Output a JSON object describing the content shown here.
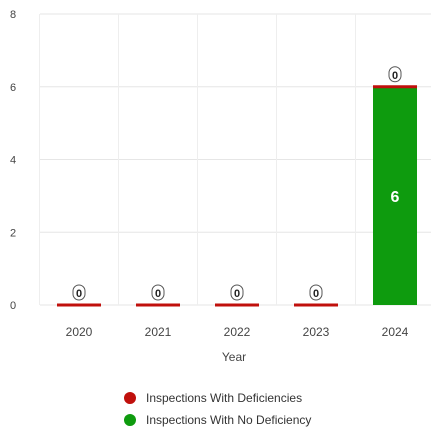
{
  "chart_data": {
    "type": "bar",
    "stacked": true,
    "categories": [
      "2020",
      "2021",
      "2022",
      "2023",
      "2024"
    ],
    "series": [
      {
        "name": "Inspections With Deficiencies",
        "values": [
          0,
          0,
          0,
          0,
          0
        ],
        "color": "#c0100c"
      },
      {
        "name": "Inspections With No Deficiency",
        "values": [
          0,
          0,
          0,
          0,
          6
        ],
        "color": "#0e9b0e"
      }
    ],
    "xlabel": "Year",
    "ylabel": "",
    "ylim": [
      0,
      8
    ],
    "yticks": [
      "0",
      "2",
      "4",
      "6",
      "8"
    ],
    "grid": true,
    "legend_position": "bottom",
    "data_labels": {
      "deficiencies": [
        "0",
        "0",
        "0",
        "0",
        "0"
      ],
      "no_deficiency": [
        "",
        "",
        "",
        "",
        "6"
      ]
    }
  }
}
